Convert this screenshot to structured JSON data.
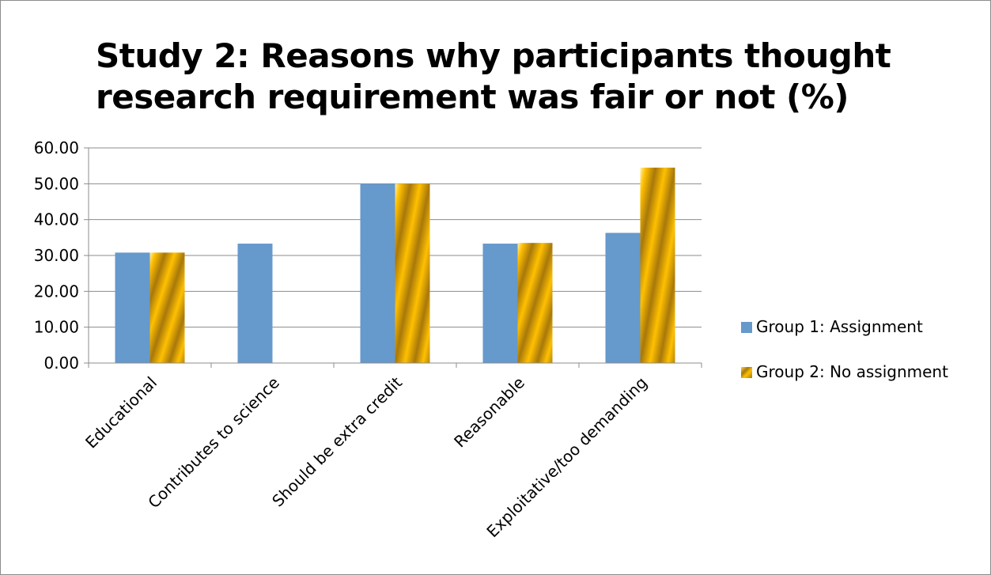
{
  "chart_data": {
    "type": "bar",
    "title_lines": [
      "Study 2: Reasons why participants thought",
      "research requirement was fair or not (%)"
    ],
    "categories": [
      "Educational",
      "Contributes to science",
      "Should be extra credit",
      "Reasonable",
      "Exploitative/too demanding"
    ],
    "series": [
      {
        "name": "Group 1: Assignment",
        "values": [
          30.8,
          33.3,
          50.0,
          33.3,
          36.3
        ],
        "color": "#6699cc"
      },
      {
        "name": "Group 2: No assignment",
        "values": [
          30.8,
          0,
          50.0,
          33.5,
          54.5
        ],
        "color": "#d49a0e"
      }
    ],
    "ylim": [
      0,
      60
    ],
    "yticks": [
      "0.00",
      "10.00",
      "20.00",
      "30.00",
      "40.00",
      "50.00",
      "60.00"
    ],
    "grid": true,
    "legend": "right"
  }
}
